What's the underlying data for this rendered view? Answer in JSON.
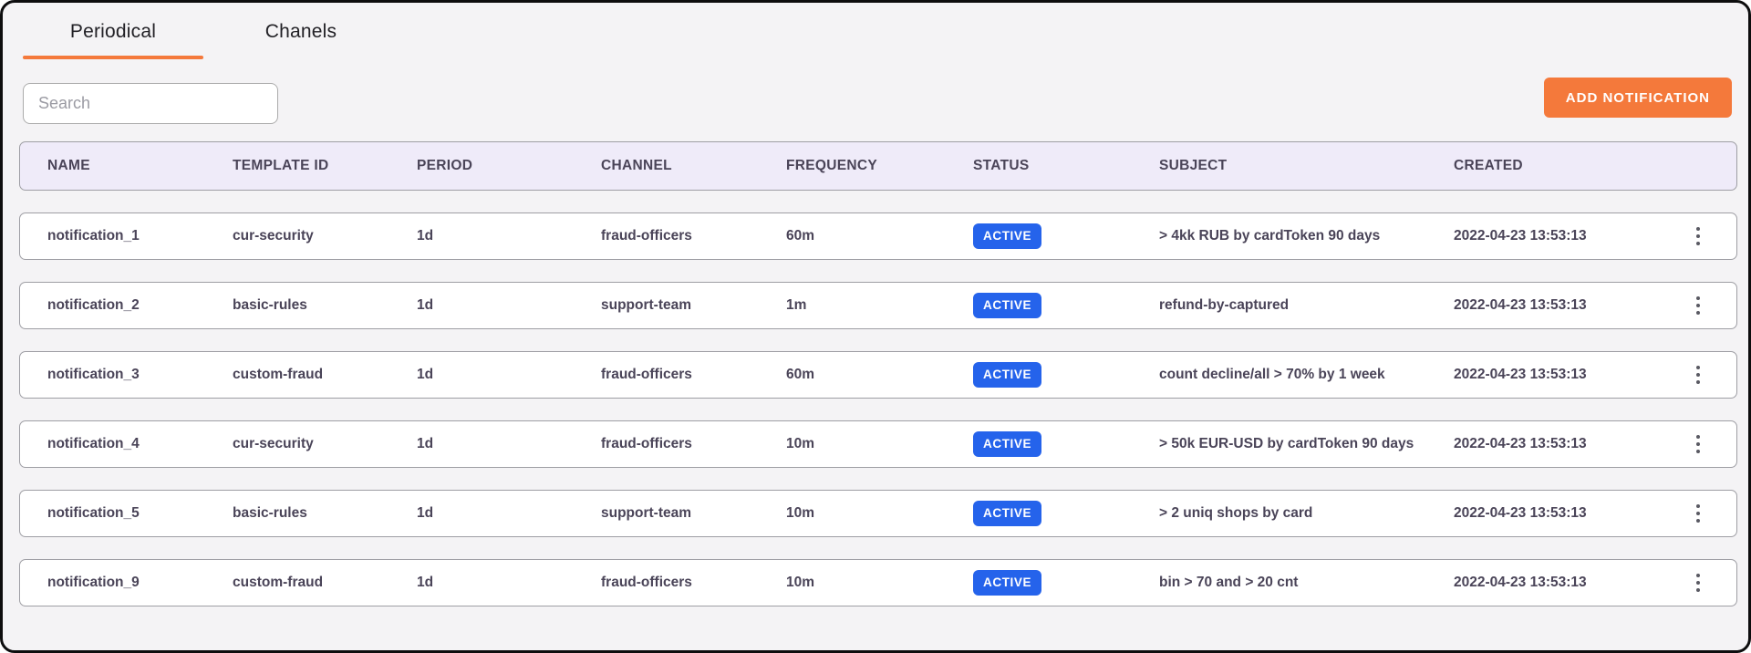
{
  "tabs": [
    {
      "label": "Periodical",
      "active": true
    },
    {
      "label": "Chanels",
      "active": false
    }
  ],
  "search": {
    "placeholder": "Search"
  },
  "toolbar": {
    "add_button_label": "ADD NOTIFICATION"
  },
  "table": {
    "columns": [
      "NAME",
      "TEMPLATE ID",
      "PERIOD",
      "CHANNEL",
      "FREQUENCY",
      "STATUS",
      "SUBJECT",
      "CREATED"
    ],
    "rows": [
      {
        "name": "notification_1",
        "template_id": "cur-security",
        "period": "1d",
        "channel": "fraud-officers",
        "frequency": "60m",
        "status": "ACTIVE",
        "subject": "> 4kk RUB by cardToken 90 days",
        "created": "2022-04-23 13:53:13"
      },
      {
        "name": "notification_2",
        "template_id": "basic-rules",
        "period": "1d",
        "channel": "support-team",
        "frequency": "1m",
        "status": "ACTIVE",
        "subject": "refund-by-captured",
        "created": "2022-04-23 13:53:13"
      },
      {
        "name": "notification_3",
        "template_id": "custom-fraud",
        "period": "1d",
        "channel": "fraud-officers",
        "frequency": "60m",
        "status": "ACTIVE",
        "subject": "count decline/all > 70% by 1 week",
        "created": "2022-04-23 13:53:13"
      },
      {
        "name": "notification_4",
        "template_id": "cur-security",
        "period": "1d",
        "channel": "fraud-officers",
        "frequency": "10m",
        "status": "ACTIVE",
        "subject": "> 50k EUR-USD by cardToken 90 days",
        "created": "2022-04-23 13:53:13"
      },
      {
        "name": "notification_5",
        "template_id": "basic-rules",
        "period": "1d",
        "channel": "support-team",
        "frequency": "10m",
        "status": "ACTIVE",
        "subject": "> 2 uniq shops by card",
        "created": "2022-04-23 13:53:13"
      },
      {
        "name": "notification_9",
        "template_id": "custom-fraud",
        "period": "1d",
        "channel": "fraud-officers",
        "frequency": "10m",
        "status": "ACTIVE",
        "subject": "bin > 70 and > 20 cnt",
        "created": "2022-04-23 13:53:13"
      }
    ]
  },
  "colors": {
    "accent_orange": "#f4793b",
    "status_active_blue": "#2563eb",
    "header_bg": "#efebf9",
    "text_primary": "#4a4458",
    "page_bg": "#f4f3f5"
  },
  "icons": {
    "row_menu": "kebab-menu-icon"
  }
}
